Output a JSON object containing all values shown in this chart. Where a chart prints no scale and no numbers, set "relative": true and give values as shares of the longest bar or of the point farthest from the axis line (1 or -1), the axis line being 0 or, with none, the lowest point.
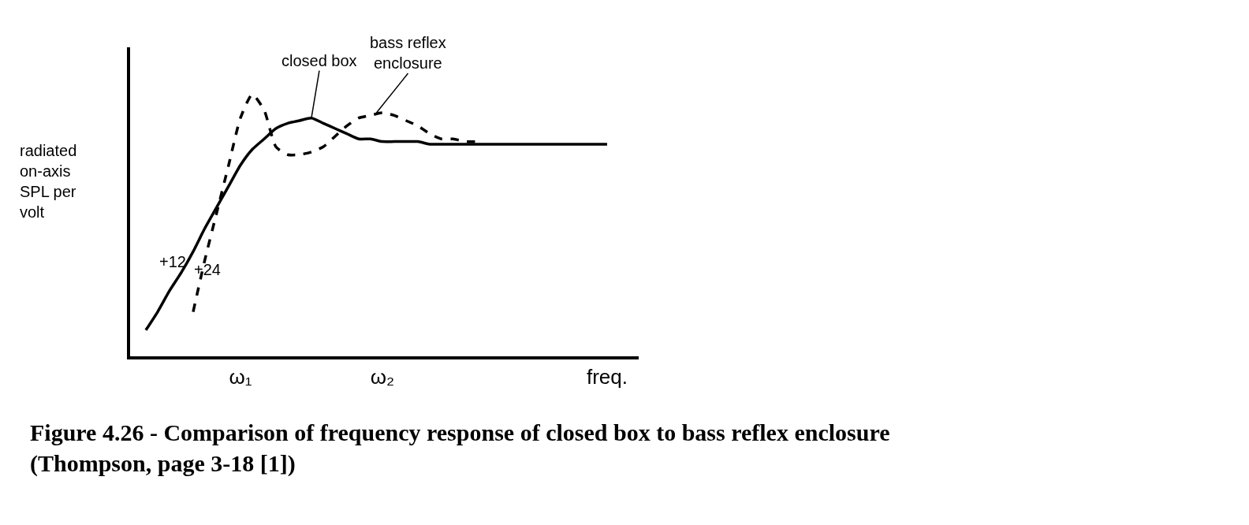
{
  "chart_data": {
    "type": "line",
    "title": "Figure 4.26 - Comparison of frequency response of closed box to bass reflex enclosure (Thompson, page 3-18 [1])",
    "ylabel": "radiated on-axis SPL per volt",
    "relative": true,
    "tick_labels": "x",
    "marker": "none",
    "categories": [
      null,
      null,
      null,
      null,
      null,
      null,
      null,
      null,
      "ω₁",
      null,
      null,
      null,
      null,
      null,
      null,
      null,
      null,
      null,
      null,
      null,
      "ω₂",
      null,
      null,
      null,
      null,
      null,
      null,
      null,
      null,
      null,
      null,
      null,
      null,
      null,
      null,
      null,
      null,
      null,
      null,
      "freq."
    ],
    "series": [
      {
        "color": "#000000",
        "line_style": "solid",
        "values": [
          0.1,
          0.17,
          0.25,
          0.32,
          0.4,
          0.49,
          0.57,
          0.65,
          0.73,
          0.79,
          0.83,
          0.87,
          0.89,
          0.9,
          0.91,
          0.89,
          0.87,
          0.85,
          0.83,
          0.83,
          0.82,
          0.82,
          0.82,
          0.82,
          0.81,
          0.81,
          0.81,
          0.81,
          0.81,
          0.81,
          0.81,
          0.81,
          0.81,
          0.81,
          0.81,
          0.81,
          0.81,
          0.81,
          0.81,
          0.81
        ]
      },
      {
        "color": "#000000",
        "line_style": "dashed",
        "values": [
          null,
          null,
          null,
          null,
          0.17,
          0.37,
          0.55,
          0.73,
          0.91,
          1.0,
          0.94,
          0.8,
          0.77,
          0.77,
          0.78,
          0.8,
          0.84,
          0.88,
          0.91,
          0.92,
          0.93,
          0.92,
          0.9,
          0.88,
          0.85,
          0.83,
          0.83,
          0.82,
          0.82,
          null,
          null,
          null,
          null,
          null,
          null,
          null,
          null,
          null,
          null,
          null
        ]
      }
    ],
    "annotations": [
      "closed box",
      "bass reflex enclosure",
      "+12",
      "+24"
    ]
  }
}
